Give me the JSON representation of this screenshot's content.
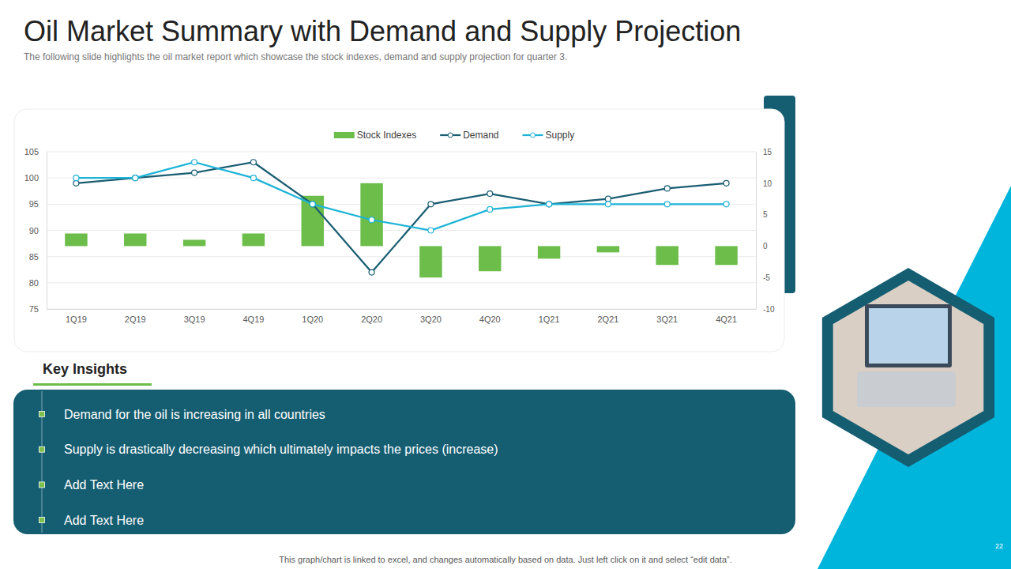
{
  "slide": {
    "title": "Oil Market Summary with Demand and Supply Projection",
    "subtitle": "The following slide highlights the oil market report which showcase the stock indexes, demand and supply  projection for quarter 3.",
    "insights_heading": "Key Insights",
    "insights": [
      "Demand for the oil is increasing in all countries",
      "Supply is drastically decreasing which ultimately impacts the prices (increase)",
      "Add Text Here",
      "Add Text Here"
    ],
    "footer": "This graph/chart is linked to excel, and changes automatically based on data. Just left click on it and select “edit data”.",
    "page_number": "22"
  },
  "chart_data": {
    "type": "combo",
    "categories": [
      "1Q19",
      "2Q19",
      "3Q19",
      "4Q19",
      "1Q20",
      "2Q20",
      "3Q20",
      "4Q20",
      "1Q21",
      "2Q21",
      "3Q21",
      "4Q21"
    ],
    "series": [
      {
        "name": "Stock Indexes",
        "type": "bar",
        "axis": "y2",
        "color": "#6cbd4a",
        "values": [
          2,
          2,
          1,
          2,
          8,
          10,
          -5,
          -4,
          -2,
          -1,
          -3,
          -3
        ]
      },
      {
        "name": "Demand",
        "type": "line",
        "color": "#1a5e72",
        "marker": "circle",
        "values": [
          99,
          100,
          101,
          103,
          95,
          82,
          95,
          97,
          95,
          96,
          98,
          99
        ]
      },
      {
        "name": "Supply",
        "type": "line",
        "color": "#1db3d6",
        "marker": "circle",
        "values": [
          100,
          100,
          103,
          100,
          95,
          92,
          90,
          94,
          95,
          95,
          95,
          95
        ]
      }
    ],
    "ylim": [
      75,
      105
    ],
    "yticks": [
      75,
      80,
      85,
      90,
      95,
      100,
      105
    ],
    "y2lim": [
      -10,
      15
    ],
    "y2ticks": [
      -10,
      -5,
      0,
      5,
      10,
      15
    ],
    "grid": true,
    "legend": "top"
  }
}
